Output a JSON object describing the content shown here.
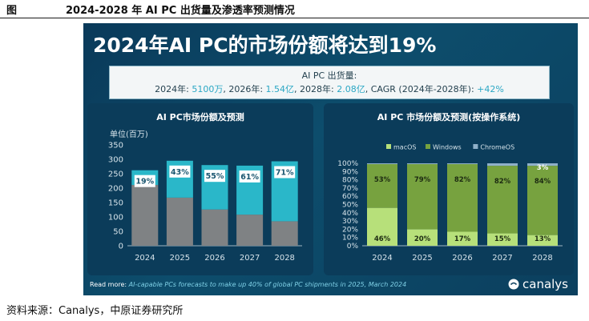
{
  "figure": {
    "label": "图",
    "title": "2024-2028 年 AI PC 出货量及渗透率预测情况"
  },
  "slide": {
    "title": "2024年AI PC的市场份额将达到19%",
    "shipment": {
      "heading": "AI PC 出货量:",
      "p1_label": "2024年: ",
      "p1_value": "5100万",
      "p2_label": ", 2026年: ",
      "p2_value": "1.54亿",
      "p3_label": ", 2028年: ",
      "p3_value": "2.08亿",
      "p4_label": ", CAGR (2024年-2028年): ",
      "p4_value": "+42%"
    },
    "footer": {
      "prefix": "Read more: ",
      "link": "AI-capable PCs forecasts to make up 40% of global PC shipments in 2025, March 2024"
    },
    "logo": "canalys"
  },
  "source": "资料来源：Canalys，中原证券研究所",
  "colors": {
    "ai_pc": "#2ab7c9",
    "non_ai": "#7f8284",
    "macos": "#b7e07a",
    "windows": "#77a23f",
    "chromeos": "#8fb0c9",
    "axis_text": "#d6e3ea"
  },
  "chart_data": [
    {
      "type": "bar",
      "title": "AI PC市场份额及预测",
      "ylabel": "单位(百万)",
      "categories": [
        "2024",
        "2025",
        "2026",
        "2027",
        "2028"
      ],
      "ylim": [
        0,
        350
      ],
      "yticks": [
        "0",
        "50",
        "100",
        "150",
        "200",
        "250",
        "300",
        "350"
      ],
      "stacked": true,
      "series": [
        {
          "values": [
            211,
            167,
            126,
            108,
            85
          ]
        },
        {
          "values": [
            51,
            128,
            154,
            170,
            208
          ]
        }
      ],
      "labels": [
        "19%",
        "43%",
        "55%",
        "61%",
        "71%"
      ],
      "grid": false
    },
    {
      "type": "bar",
      "title": "AI PC 市场份额及预测(按操作系统)",
      "categories": [
        "2024",
        "2025",
        "2026",
        "2027",
        "2028"
      ],
      "ylim": [
        0,
        100
      ],
      "yticks": [
        "0%",
        "10%",
        "20%",
        "30%",
        "40%",
        "50%",
        "60%",
        "70%",
        "80%",
        "90%",
        "100%"
      ],
      "stacked": true,
      "legend": "top",
      "series": [
        {
          "name": "macOS",
          "values": [
            46,
            20,
            17,
            15,
            13
          ],
          "labels": [
            "46%",
            "20%",
            "17%",
            "15%",
            "13%"
          ]
        },
        {
          "name": "Windows",
          "values": [
            53,
            79,
            82,
            82,
            84
          ],
          "labels": [
            "53%",
            "79%",
            "82%",
            "82%",
            "84%"
          ]
        },
        {
          "name": "ChromeOS",
          "values": [
            1,
            1,
            1,
            3,
            3
          ],
          "labels": [
            "",
            "",
            "",
            "",
            "3%"
          ]
        }
      ],
      "grid": false
    }
  ]
}
